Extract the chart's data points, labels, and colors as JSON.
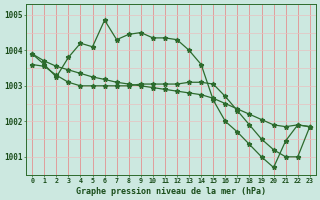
{
  "hours": [
    0,
    1,
    2,
    3,
    4,
    5,
    6,
    7,
    8,
    9,
    10,
    11,
    12,
    13,
    14,
    15,
    16,
    17,
    18,
    19,
    20,
    21,
    22,
    23
  ],
  "series1": [
    1003.9,
    1003.6,
    1003.25,
    1003.8,
    1004.2,
    1004.1,
    1004.85,
    1004.3,
    1004.45,
    1004.5,
    1004.35,
    1004.35,
    1004.3,
    1004.0,
    1003.6,
    1002.6,
    1002.0,
    1001.7,
    1001.35,
    1001.0,
    1000.7,
    1001.45,
    1001.9,
    1001.85
  ],
  "series2": [
    1003.9,
    1003.7,
    1003.55,
    1003.45,
    1003.35,
    1003.25,
    1003.18,
    1003.1,
    1003.05,
    1003.0,
    1002.95,
    1002.9,
    1002.85,
    1002.8,
    1002.75,
    1002.65,
    1002.5,
    1002.35,
    1002.2,
    1002.05,
    1001.9,
    1001.85,
    1001.9,
    1001.85
  ],
  "series3": [
    1003.6,
    1003.55,
    1003.3,
    1003.1,
    1003.0,
    1003.0,
    1003.0,
    1003.0,
    1003.0,
    1003.05,
    1003.05,
    1003.05,
    1003.05,
    1003.1,
    1003.1,
    1003.05,
    1002.7,
    1002.3,
    1001.9,
    1001.5,
    1001.2,
    1001.0,
    1001.0,
    1001.85
  ],
  "line_color": "#2d6b2d",
  "bg_color": "#cce8e0",
  "grid_color_v": "#e88080",
  "grid_color_h": "#e8c0c0",
  "label_color": "#1a4d1a",
  "title": "Graphe pression niveau de la mer (hPa)",
  "ylim": [
    1000.5,
    1005.3
  ],
  "yticks": [
    1001,
    1002,
    1003,
    1004,
    1005
  ],
  "xticks": [
    0,
    1,
    2,
    3,
    4,
    5,
    6,
    7,
    8,
    9,
    10,
    11,
    12,
    13,
    14,
    15,
    16,
    17,
    18,
    19,
    20,
    21,
    22,
    23
  ]
}
